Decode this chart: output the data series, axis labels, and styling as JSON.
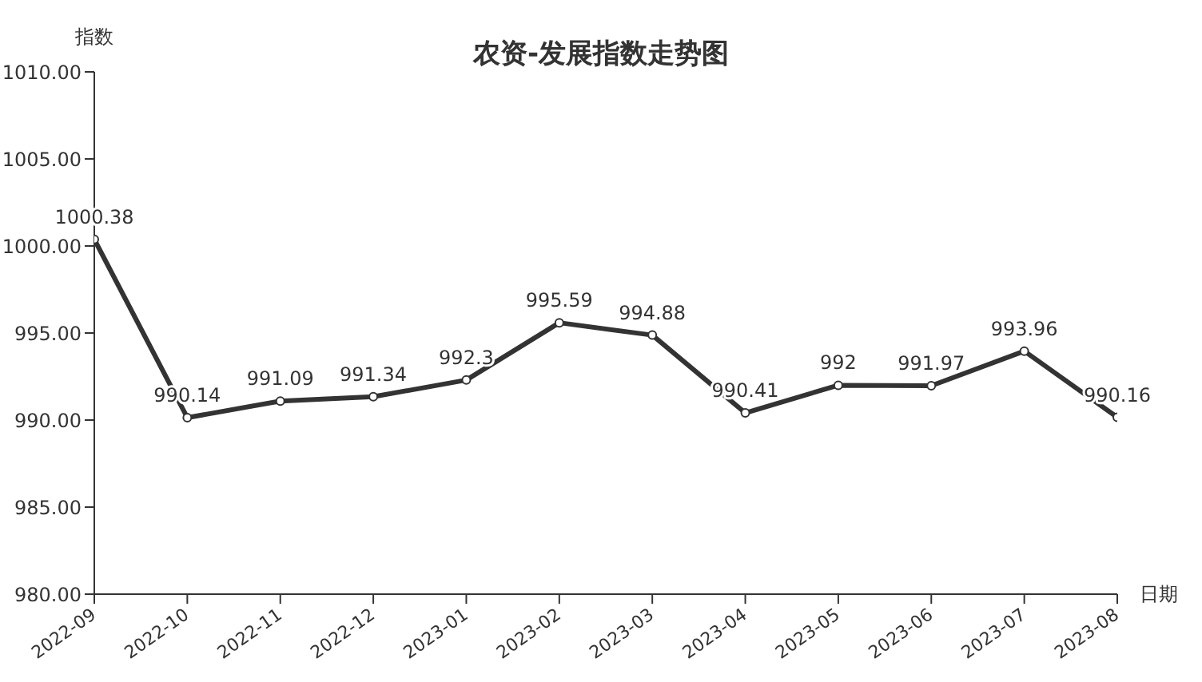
{
  "chart_data": {
    "type": "line",
    "title": "农资-发展指数走势图",
    "xlabel": "日期",
    "ylabel": "指数",
    "categories": [
      "2022-09",
      "2022-10",
      "2022-11",
      "2022-12",
      "2023-01",
      "2023-02",
      "2023-03",
      "2023-04",
      "2023-05",
      "2023-06",
      "2023-07",
      "2023-08"
    ],
    "series": [
      {
        "color": "#333333",
        "values": [
          1000.38,
          990.14,
          991.09,
          991.34,
          992.3,
          995.59,
          994.88,
          990.41,
          992,
          991.97,
          993.96,
          990.16
        ]
      }
    ],
    "ylim": [
      980,
      1010
    ],
    "yticks": [
      {
        "value": 980,
        "label": "980.00"
      },
      {
        "value": 985,
        "label": "985.00"
      },
      {
        "value": 990,
        "label": "990.00"
      },
      {
        "value": 995,
        "label": "995.00"
      },
      {
        "value": 1000,
        "label": "1000.00"
      },
      {
        "value": 1005,
        "label": "1005.00"
      },
      {
        "value": 1010,
        "label": "1010.00"
      }
    ],
    "data_labels": true,
    "marker": "circle",
    "line_style": "solid",
    "grid": false
  }
}
